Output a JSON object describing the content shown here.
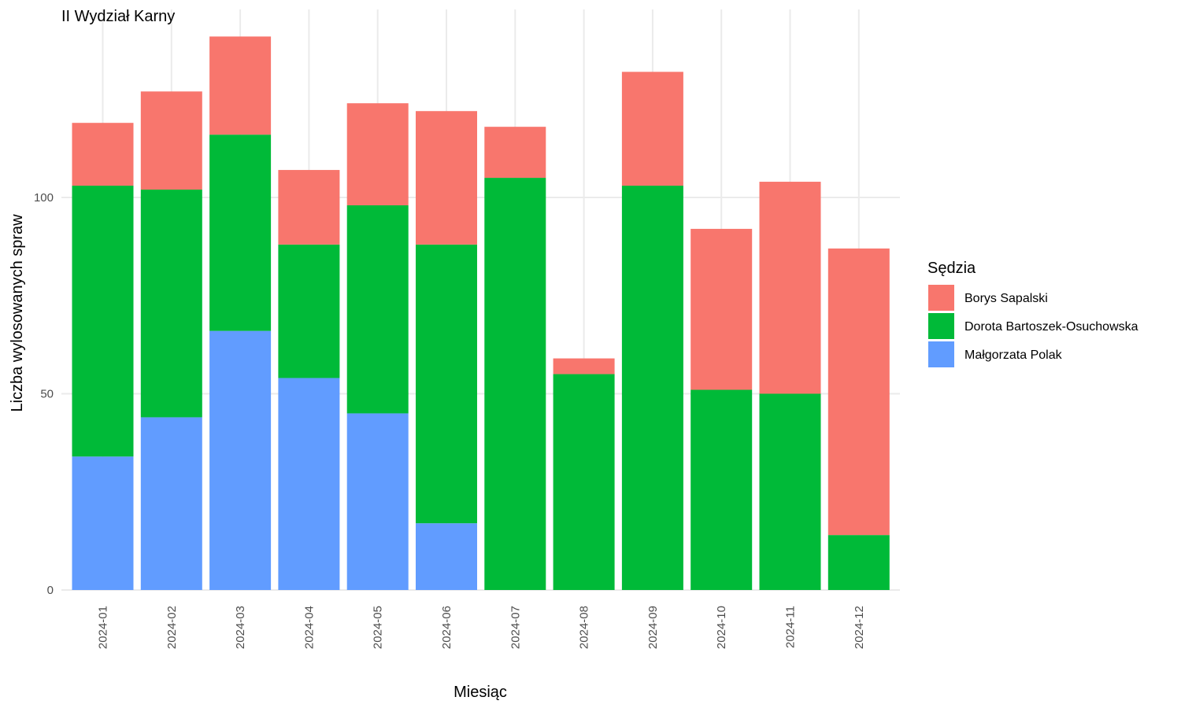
{
  "chart_data": {
    "type": "bar",
    "stacked": true,
    "title": "II Wydział Karny",
    "xlabel": "Miesiąc",
    "ylabel": "Liczba wylosowanych spraw",
    "ylim": [
      0,
      148
    ],
    "yticks": [
      0,
      50,
      100
    ],
    "grid": true,
    "legend_title": "Sędzia",
    "legend_position": "right",
    "categories": [
      "2024-01",
      "2024-02",
      "2024-03",
      "2024-04",
      "2024-05",
      "2024-06",
      "2024-07",
      "2024-08",
      "2024-09",
      "2024-10",
      "2024-11",
      "2024-12"
    ],
    "series": [
      {
        "name": "Małgorzata Polak",
        "color": "#619cff",
        "values": [
          34,
          44,
          66,
          54,
          45,
          17,
          0,
          0,
          0,
          0,
          0,
          0
        ]
      },
      {
        "name": "Dorota Bartoszek-Osuchowska",
        "color": "#00ba38",
        "values": [
          69,
          58,
          50,
          34,
          53,
          71,
          105,
          55,
          103,
          51,
          50,
          14
        ]
      },
      {
        "name": "Borys Sapalski",
        "color": "#f8766d",
        "values": [
          16,
          25,
          25,
          19,
          26,
          34,
          13,
          4,
          29,
          41,
          54,
          73
        ]
      }
    ],
    "legend_order": [
      "Borys Sapalski",
      "Dorota Bartoszek-Osuchowska",
      "Małgorzata Polak"
    ]
  }
}
